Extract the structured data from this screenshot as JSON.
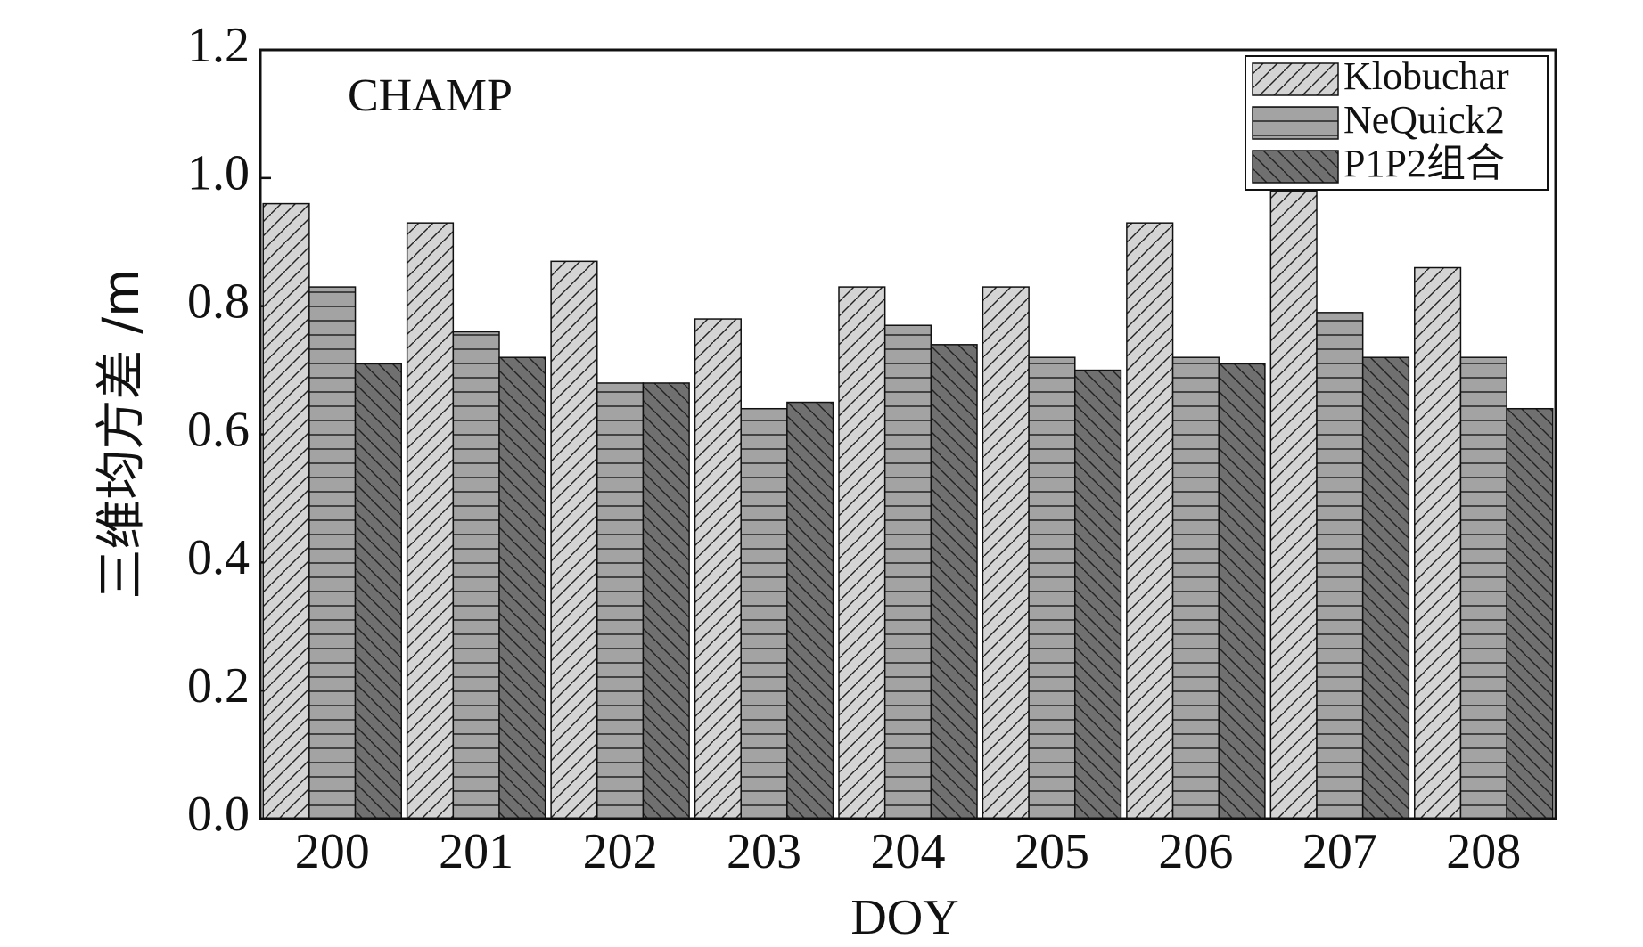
{
  "chart_data": {
    "type": "bar",
    "annotation": "CHAMP",
    "x_label": "DOY",
    "y_label": "三维均方差 /m",
    "categories": [
      "200",
      "201",
      "202",
      "203",
      "204",
      "205",
      "206",
      "207",
      "208"
    ],
    "series": [
      {
        "name": "Klobuchar",
        "color": "#d4d4d4",
        "pattern": "diagonal",
        "values": [
          0.96,
          0.93,
          0.87,
          0.78,
          0.83,
          0.83,
          0.93,
          0.98,
          0.86
        ]
      },
      {
        "name": "NeQuick2",
        "color": "#a3a3a3",
        "pattern": "horizontal",
        "values": [
          0.83,
          0.76,
          0.68,
          0.64,
          0.77,
          0.72,
          0.72,
          0.79,
          0.72
        ]
      },
      {
        "name": "P1P2组合",
        "color": "#707070",
        "pattern": "backdiagonal",
        "values": [
          0.71,
          0.72,
          0.68,
          0.65,
          0.74,
          0.7,
          0.71,
          0.72,
          0.64
        ]
      }
    ],
    "ylim": [
      0,
      1.2
    ],
    "yticks": [
      {
        "value": 0,
        "label": "0.0"
      },
      {
        "value": 0.2,
        "label": "0.2"
      },
      {
        "value": 0.4,
        "label": "0.4"
      },
      {
        "value": 0.6,
        "label": "0.6"
      },
      {
        "value": 0.8,
        "label": "0.8"
      },
      {
        "value": 1,
        "label": "1.0"
      },
      {
        "value": 1.2,
        "label": "1.2"
      }
    ],
    "legend": "upper right",
    "grid": false
  }
}
